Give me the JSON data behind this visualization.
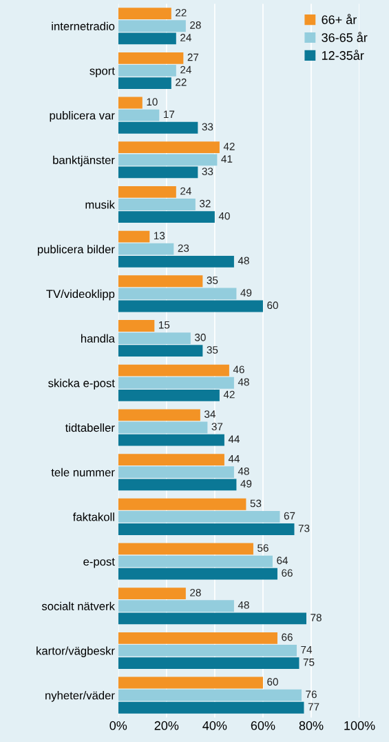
{
  "chart_data": {
    "type": "bar",
    "orientation": "horizontal",
    "categories": [
      "internetradio",
      "sport",
      "publicera var",
      "banktjänster",
      "musik",
      "publicera bilder",
      "TV/videoklipp",
      "handla",
      "skicka e-post",
      "tidtabeller",
      "tele nummer",
      "faktakoll",
      "e-post",
      "socialt nätverk",
      "kartor/vägbeskr",
      "nyheter/väder"
    ],
    "series": [
      {
        "name": "66+ år",
        "color": "#f39325",
        "values": [
          22,
          27,
          10,
          42,
          24,
          13,
          35,
          15,
          46,
          34,
          44,
          53,
          56,
          28,
          66,
          60
        ]
      },
      {
        "name": "36-65 år",
        "color": "#93cddd",
        "values": [
          28,
          24,
          17,
          41,
          32,
          23,
          49,
          30,
          48,
          37,
          48,
          67,
          64,
          48,
          74,
          76
        ]
      },
      {
        "name": "12-35år",
        "color": "#0b7896",
        "values": [
          24,
          22,
          33,
          33,
          40,
          48,
          60,
          35,
          42,
          44,
          49,
          73,
          66,
          78,
          75,
          77
        ]
      }
    ],
    "xlim": [
      0,
      100
    ],
    "xticks": [
      {
        "value": 0,
        "label": "0%"
      },
      {
        "value": 20,
        "label": "20%"
      },
      {
        "value": 40,
        "label": "40%"
      },
      {
        "value": 60,
        "label": "60%"
      },
      {
        "value": 80,
        "label": "80%"
      },
      {
        "value": 100,
        "label": "100%"
      }
    ],
    "grid": "x",
    "legend": "top right",
    "data_labels": true
  }
}
